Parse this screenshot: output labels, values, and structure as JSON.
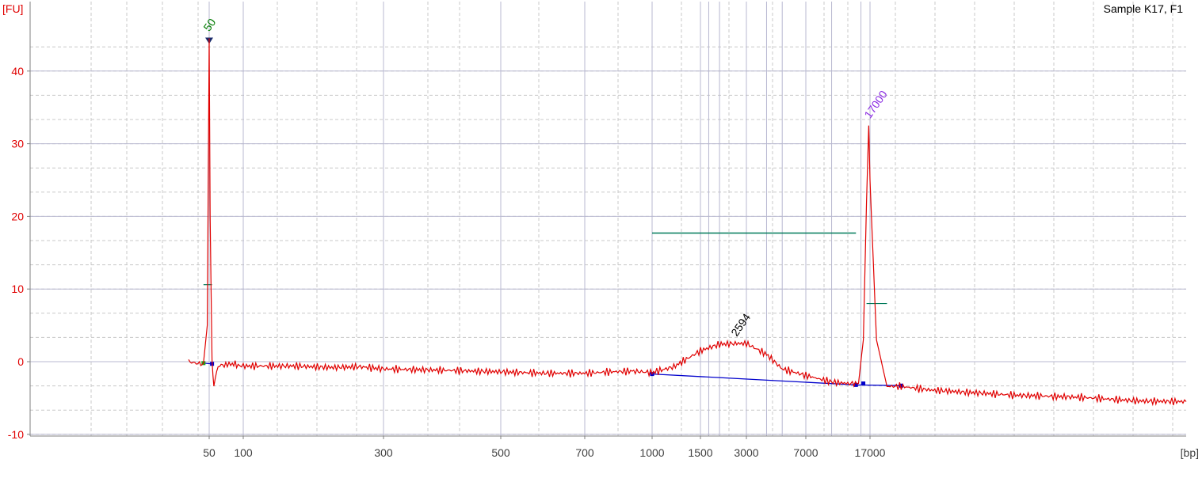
{
  "chart_data": {
    "type": "line",
    "title": "Sample K17, F1",
    "ylabel": "[FU]",
    "xlabel": "[bp]",
    "ylim": [
      -10,
      45
    ],
    "y_ticks": [
      -10,
      0,
      10,
      20,
      30,
      40
    ],
    "x_ticks": [
      "50",
      "100",
      "300",
      "500",
      "700",
      "1000",
      "1500",
      "3000",
      "7000",
      "17000"
    ],
    "grid": true,
    "colors": {
      "trace": "#e00000",
      "baseline": "#0000cc",
      "region": "#007a5a",
      "marker_lower": "#007a00",
      "marker_upper": "#8a2be2",
      "peak_label": "#000000",
      "axis_text": "#e00000",
      "grid_major": "#b8b8d0",
      "grid_minor": "#c8c8c8"
    },
    "peaks": [
      {
        "label": "50",
        "role": "lower-marker",
        "x_bp": 50,
        "height": 44.5
      },
      {
        "label": "2594",
        "role": "sample",
        "x_bp": 2594,
        "height": 2.5
      },
      {
        "label": "17000",
        "role": "upper-marker",
        "x_bp": 17000,
        "height": 32.5
      }
    ],
    "series": [
      {
        "x": [
          40,
          45,
          47,
          49,
          50,
          51,
          53,
          55,
          60,
          70,
          80,
          90,
          100,
          150,
          200,
          250,
          300,
          400,
          500,
          600,
          700,
          800,
          900,
          1000,
          1200,
          1500,
          2000,
          2594,
          3000,
          4000,
          5000,
          7000,
          10000,
          12500,
          14500,
          15500,
          16200,
          16700,
          17000,
          17300,
          17800,
          18500,
          20000,
          22000,
          25000,
          30000,
          35000,
          40000
        ],
        "y": [
          0.0,
          -0.3,
          -0.2,
          5.0,
          44.5,
          20.0,
          -0.2,
          -3.3,
          -0.6,
          -0.4,
          -0.3,
          -0.5,
          -0.6,
          -0.6,
          -0.8,
          -0.7,
          -1.0,
          -1.2,
          -1.4,
          -1.6,
          -1.6,
          -1.4,
          -1.3,
          -1.5,
          -0.7,
          1.5,
          2.4,
          2.5,
          2.5,
          1.0,
          -1.0,
          -1.9,
          -2.8,
          -3.0,
          -3.0,
          3.0,
          22.0,
          32.5,
          25.0,
          3.0,
          -3.4,
          -3.4,
          -3.9,
          -4.2,
          -4.6,
          -4.9,
          -5.4,
          -5.5
        ]
      }
    ],
    "baseline": {
      "x": [
        1000,
        14000,
        18500
      ],
      "y": [
        -1.7,
        -3.2,
        -3.3
      ]
    },
    "region": {
      "x_start": 1000,
      "x_end": 14000,
      "y": 17.7
    },
    "marker_level_lines": [
      {
        "x_from": 47,
        "x_to": 53,
        "y": 10.6
      },
      {
        "x_from": 16200,
        "x_to": 17800,
        "y": 8.0
      }
    ]
  }
}
